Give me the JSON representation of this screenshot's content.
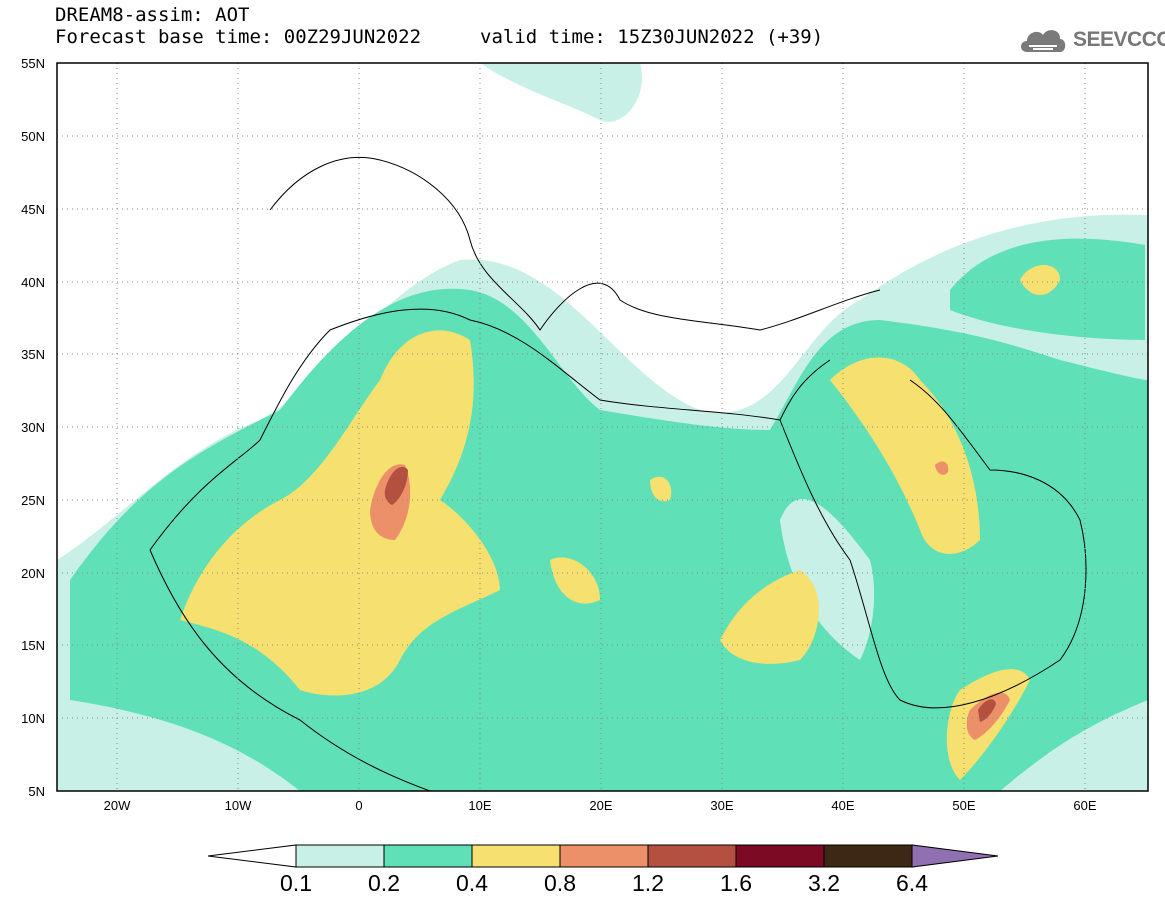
{
  "header": {
    "line1": "DREAM8-assim: AOT",
    "line2": "Forecast base time: 00Z29JUN2022",
    "valid": "valid time: 15Z30JUN2022 (+39)"
  },
  "logo": {
    "text": "SEEVCCC",
    "icon": "cloud-logo-icon"
  },
  "map": {
    "variable": "AOT",
    "lon_range": [
      -25,
      65
    ],
    "lat_range": [
      5,
      55
    ],
    "lon_ticks": [
      "20W",
      "10W",
      "0",
      "10E",
      "20E",
      "30E",
      "40E",
      "50E",
      "60E"
    ],
    "lat_ticks": [
      "55N",
      "50N",
      "45N",
      "40N",
      "35N",
      "30N",
      "25N",
      "20N",
      "15N",
      "10N",
      "5N"
    ],
    "grid": "dotted"
  },
  "colorbar": {
    "labels": [
      "0.1",
      "0.2",
      "0.4",
      "0.8",
      "1.2",
      "1.6",
      "3.2",
      "6.4"
    ],
    "colors": [
      "#c8f0e6",
      "#5fe0b6",
      "#f5e070",
      "#eb9068",
      "#b45040",
      "#7d0a24",
      "#3c2814",
      "#9070b0"
    ]
  }
}
